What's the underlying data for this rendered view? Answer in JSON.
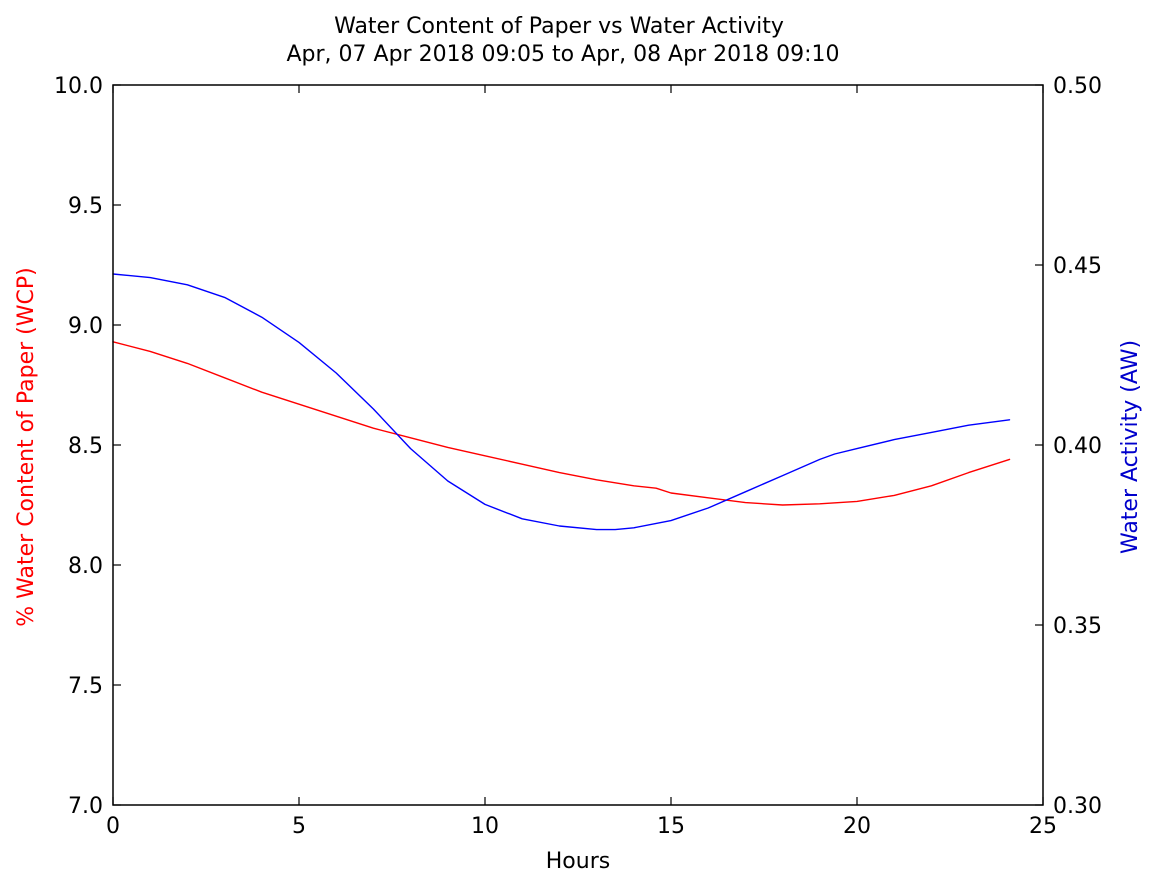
{
  "chart_data": {
    "type": "line",
    "title": "Water Content of Paper vs Water Activity",
    "subtitle": "Apr, 07 Apr 2018 09:05 to Apr, 08 Apr 2018 09:10",
    "xlabel": "Hours",
    "ylabel_left": "% Water Content of Paper (WCP)",
    "ylabel_right": "Water Activity (AW)",
    "xlim": [
      0,
      25
    ],
    "ylim_left": [
      7.0,
      10.0
    ],
    "ylim_right": [
      0.3,
      0.5
    ],
    "xticks": [
      "0",
      "5",
      "10",
      "15",
      "20",
      "25"
    ],
    "yticks_left": [
      "7.0",
      "7.5",
      "8.0",
      "8.5",
      "9.0",
      "9.5",
      "10.0"
    ],
    "yticks_right": [
      "0.30",
      "0.35",
      "0.40",
      "0.45",
      "0.50"
    ],
    "grid": false,
    "colors": {
      "left_axis": "#ff0000",
      "right_axis": "#0000cc",
      "wcp_line": "#ff0000",
      "aw_line": "#0000ff"
    },
    "series": [
      {
        "axis": "left",
        "x": [
          0,
          1,
          2,
          3,
          4,
          5,
          6,
          7,
          8,
          9,
          10,
          11,
          12,
          13,
          14,
          14.6,
          15,
          16,
          17,
          18,
          19,
          20,
          21,
          22,
          23,
          24.1
        ],
        "y": [
          8.93,
          8.89,
          8.84,
          8.78,
          8.72,
          8.67,
          8.62,
          8.57,
          8.53,
          8.49,
          8.455,
          8.42,
          8.385,
          8.355,
          8.33,
          8.32,
          8.3,
          8.28,
          8.26,
          8.25,
          8.255,
          8.265,
          8.29,
          8.33,
          8.385,
          8.44
        ]
      },
      {
        "axis": "right",
        "x": [
          0,
          1,
          2,
          3,
          4,
          5,
          6,
          7,
          8,
          9,
          10,
          11,
          12,
          13,
          13.5,
          14,
          15,
          16,
          17,
          18,
          19,
          19.4,
          20,
          21,
          22,
          23,
          24.1
        ],
        "y": [
          0.4475,
          0.4465,
          0.4445,
          0.441,
          0.4355,
          0.4285,
          0.42,
          0.41,
          0.399,
          0.39,
          0.3835,
          0.3795,
          0.3775,
          0.3765,
          0.3765,
          0.377,
          0.379,
          0.3825,
          0.387,
          0.3915,
          0.396,
          0.3975,
          0.399,
          0.4015,
          0.4035,
          0.4055,
          0.407
        ]
      }
    ]
  }
}
